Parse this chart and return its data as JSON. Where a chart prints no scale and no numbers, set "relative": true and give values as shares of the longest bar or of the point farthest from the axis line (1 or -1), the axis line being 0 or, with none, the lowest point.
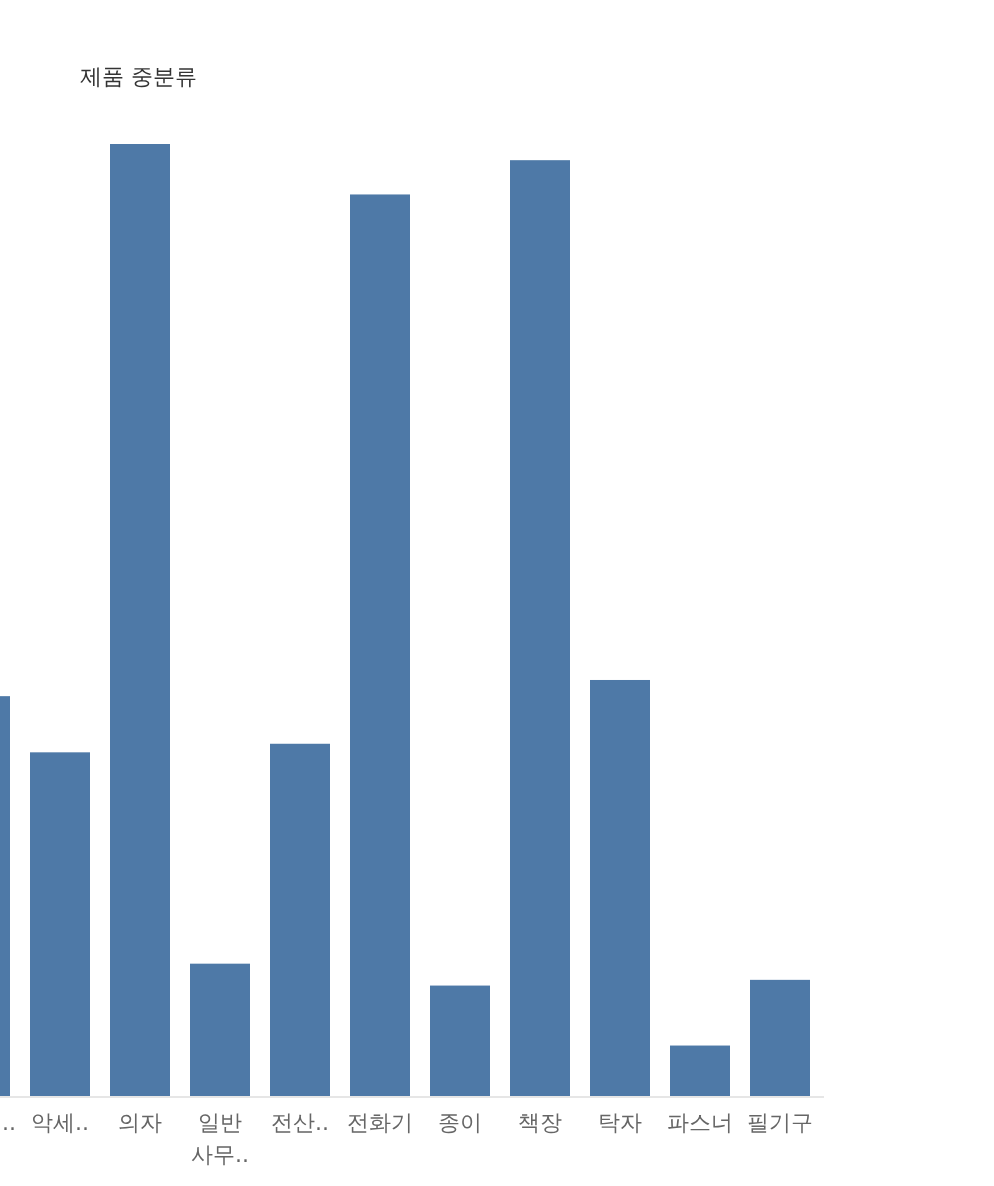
{
  "chart_data": {
    "type": "bar",
    "title": "제품 중분류",
    "relative": true,
    "color": "#4e79a7",
    "categories": [
      "..",
      "악세..",
      "의자",
      "일반 사무..",
      "전산..",
      "전화기",
      "종이",
      "책장",
      "탁자",
      "파스너",
      "필기구"
    ],
    "values": [
      0.42,
      0.361,
      1,
      0.139,
      0.37,
      0.947,
      0.116,
      0.983,
      0.437,
      0.053,
      0.122
    ]
  }
}
